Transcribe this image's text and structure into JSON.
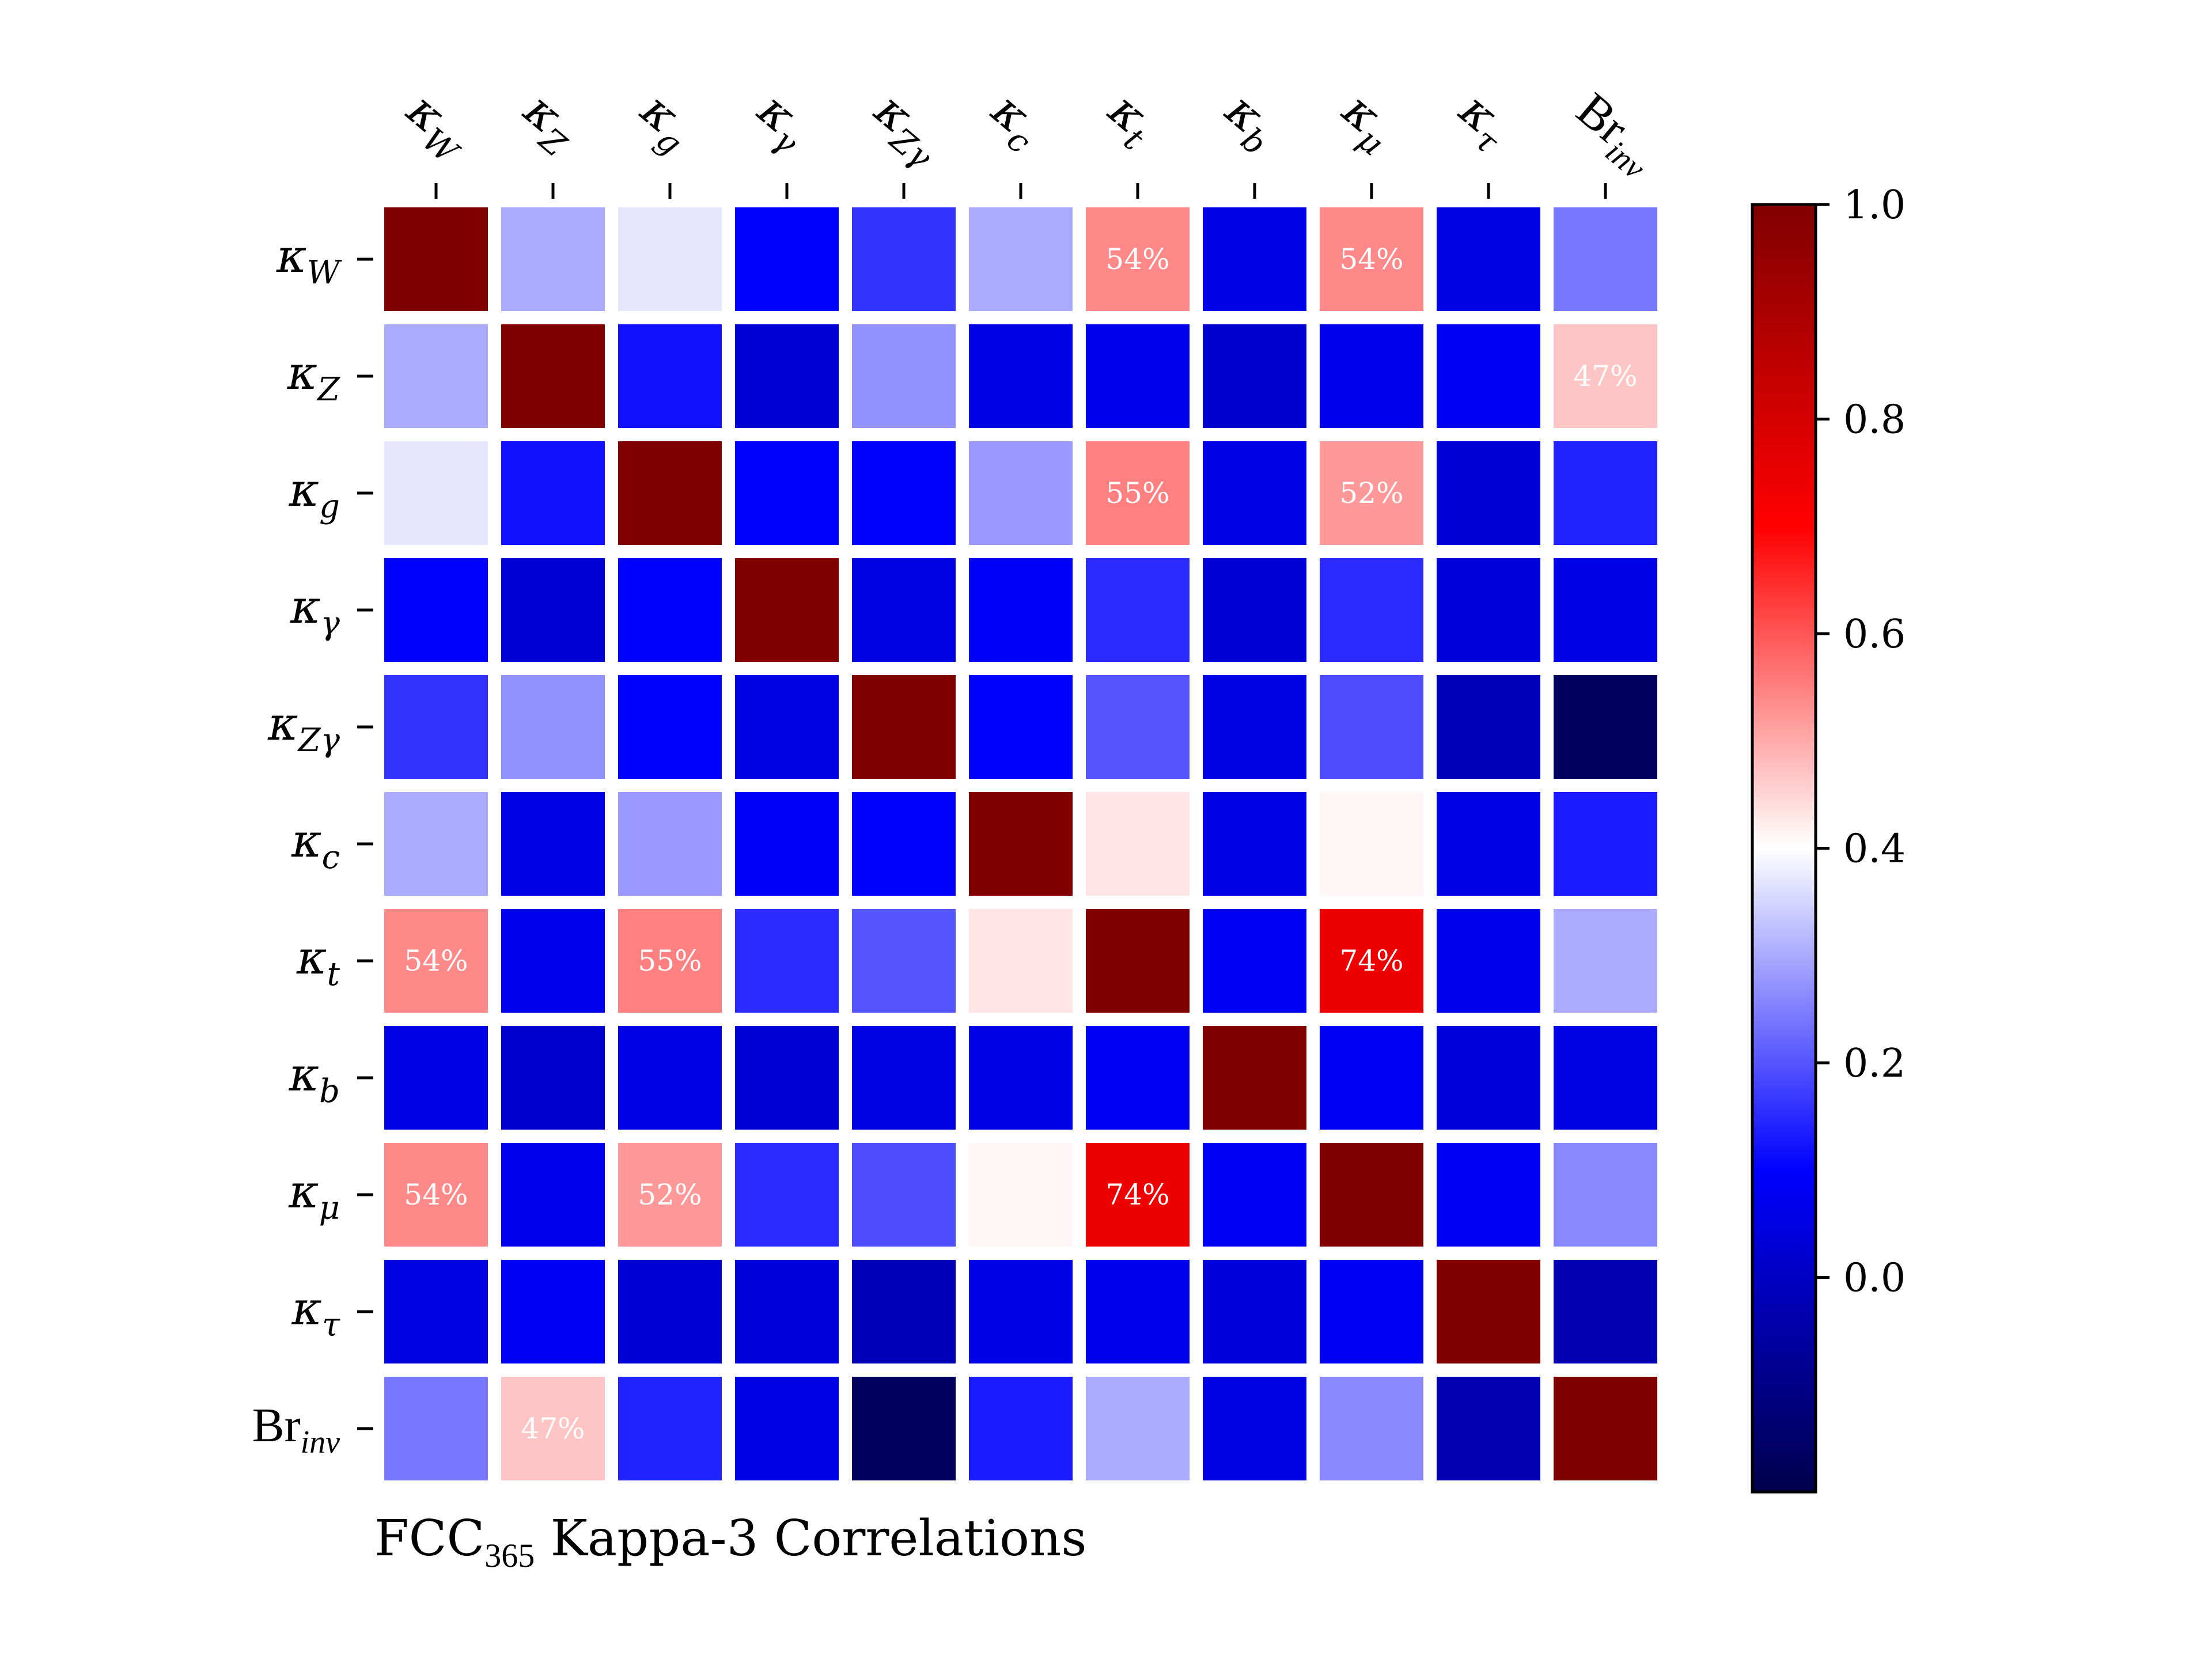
{
  "title": {
    "main": "FCC",
    "sub": "365",
    "rest": " Kappa-3 Correlations"
  },
  "labels": [
    {
      "main": "κ",
      "sub": "W"
    },
    {
      "main": "κ",
      "sub": "Z"
    },
    {
      "main": "κ",
      "sub": "g"
    },
    {
      "main": "κ",
      "sub": "γ"
    },
    {
      "main": "κ",
      "sub": "Zγ"
    },
    {
      "main": "κ",
      "sub": "c"
    },
    {
      "main": "κ",
      "sub": "t"
    },
    {
      "main": "κ",
      "sub": "b"
    },
    {
      "main": "κ",
      "sub": "μ"
    },
    {
      "main": "κ",
      "sub": "τ"
    },
    {
      "main": "Br",
      "sub": "inv"
    }
  ],
  "colorbar": {
    "min": -0.2,
    "max": 1.0,
    "ticks": [
      {
        "v": 1.0,
        "t": "1.0"
      },
      {
        "v": 0.8,
        "t": "0.8"
      },
      {
        "v": 0.6,
        "t": "0.6"
      },
      {
        "v": 0.4,
        "t": "0.4"
      },
      {
        "v": 0.2,
        "t": "0.2"
      },
      {
        "v": 0.0,
        "t": "0.0"
      }
    ],
    "colormap": "seismic"
  },
  "chart_data": {
    "type": "heatmap",
    "title": "FCC365 Kappa-3 Correlations",
    "x_categories": [
      "κW",
      "κZ",
      "κg",
      "κγ",
      "κZγ",
      "κc",
      "κt",
      "κb",
      "κμ",
      "κτ",
      "Brinv"
    ],
    "y_categories": [
      "κW",
      "κZ",
      "κg",
      "κγ",
      "κZγ",
      "κc",
      "κt",
      "κb",
      "κμ",
      "κτ",
      "Brinv"
    ],
    "value_range": [
      -0.2,
      1.0
    ],
    "values": [
      [
        1.0,
        0.3,
        0.37,
        0.1,
        0.16,
        0.3,
        0.54,
        0.06,
        0.54,
        0.05,
        0.24
      ],
      [
        0.3,
        1.0,
        0.12,
        0.03,
        0.27,
        0.06,
        0.07,
        0.02,
        0.07,
        0.08,
        0.47
      ],
      [
        0.37,
        0.12,
        1.0,
        0.1,
        0.1,
        0.28,
        0.55,
        0.06,
        0.52,
        0.03,
        0.14
      ],
      [
        0.1,
        0.03,
        0.1,
        1.0,
        0.05,
        0.09,
        0.15,
        0.03,
        0.15,
        0.04,
        0.06
      ],
      [
        0.16,
        0.27,
        0.1,
        0.05,
        1.0,
        0.1,
        0.2,
        0.05,
        0.19,
        -0.02,
        -0.17
      ],
      [
        0.3,
        0.06,
        0.28,
        0.09,
        0.1,
        1.0,
        0.43,
        0.06,
        0.41,
        0.06,
        0.13
      ],
      [
        0.54,
        0.07,
        0.55,
        0.15,
        0.2,
        0.43,
        1.0,
        0.08,
        0.74,
        0.07,
        0.3
      ],
      [
        0.06,
        0.02,
        0.06,
        0.03,
        0.05,
        0.06,
        0.08,
        1.0,
        0.08,
        0.04,
        0.05
      ],
      [
        0.54,
        0.07,
        0.52,
        0.15,
        0.19,
        0.41,
        0.74,
        0.08,
        1.0,
        0.08,
        0.26
      ],
      [
        0.05,
        0.08,
        0.03,
        0.04,
        -0.02,
        0.06,
        0.07,
        0.04,
        0.08,
        1.0,
        -0.03
      ],
      [
        0.24,
        0.47,
        0.14,
        0.06,
        -0.17,
        0.13,
        0.3,
        0.05,
        0.26,
        -0.03,
        1.0
      ]
    ],
    "annotations": [
      {
        "row": 0,
        "col": 6,
        "text": "54%"
      },
      {
        "row": 0,
        "col": 8,
        "text": "54%"
      },
      {
        "row": 1,
        "col": 10,
        "text": "47%"
      },
      {
        "row": 2,
        "col": 6,
        "text": "55%"
      },
      {
        "row": 2,
        "col": 8,
        "text": "52%"
      },
      {
        "row": 6,
        "col": 0,
        "text": "54%"
      },
      {
        "row": 6,
        "col": 2,
        "text": "55%"
      },
      {
        "row": 6,
        "col": 8,
        "text": "74%"
      },
      {
        "row": 8,
        "col": 0,
        "text": "54%"
      },
      {
        "row": 8,
        "col": 2,
        "text": "52%"
      },
      {
        "row": 8,
        "col": 6,
        "text": "74%"
      },
      {
        "row": 10,
        "col": 1,
        "text": "47%"
      }
    ]
  }
}
